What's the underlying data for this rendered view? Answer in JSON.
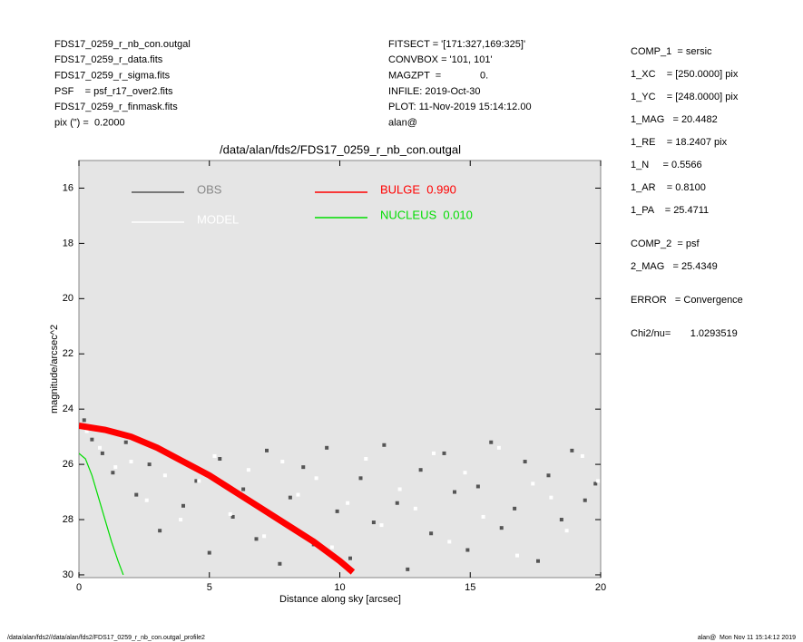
{
  "header": {
    "left": [
      "FDS17_0259_r_nb_con.outgal",
      "FDS17_0259_r_data.fits",
      "FDS17_0259_r_sigma.fits",
      "PSF    = psf_r17_over2.fits",
      "FDS17_0259_r_finmask.fits",
      "pix (\") =  0.2000"
    ],
    "center": [
      "FITSECT = '[171:327,169:325]'",
      "CONVBOX = '101, 101'",
      "MAGZPT  =              0.",
      "INFILE: 2019-Oct-30",
      "PLOT: 11-Nov-2019 15:14:12.00",
      "alan@"
    ],
    "right": [
      "COMP_1  = sersic",
      "1_XC    = [250.0000] pix",
      "1_YC    = [248.0000] pix",
      "1_MAG   = 20.4482",
      "1_RE    = 18.2407 pix",
      "1_N     = 0.5566",
      "1_AR    = 0.8100",
      "1_PA    = 25.4711",
      "COMP_2  = psf",
      "2_MAG   = 25.4349",
      "ERROR   = Convergence",
      "Chi2/nu=       1.0293519"
    ]
  },
  "footer": {
    "left": "/data/alan/fds2//data/alan/fds2/FDS17_0259_r_nb_con.outgal_profile2",
    "right": "alan@  Mon Nov 11 15:14:12 2019"
  },
  "chart_data": {
    "type": "scatter",
    "title": "/data/alan/fds2/FDS17_0259_r_nb_con.outgal",
    "xlabel": "Distance along sky [arcsec]",
    "ylabel": "magnitude/arcsec^2",
    "xlim": [
      0,
      20
    ],
    "xticks": [
      0,
      5,
      10,
      15,
      20
    ],
    "ylim": [
      30.1,
      15
    ],
    "yticks": [
      16,
      18,
      20,
      22,
      24,
      26,
      28,
      30
    ],
    "background": "#e5e5e5",
    "series": [
      {
        "name": "OBS",
        "color": "#555555",
        "type": "scatter",
        "x": [
          0.2,
          0.5,
          0.9,
          1.3,
          1.8,
          2.2,
          2.7,
          3.1,
          3.6,
          4.0,
          4.5,
          5.0,
          5.4,
          5.9,
          6.3,
          6.8,
          7.2,
          7.7,
          8.1,
          8.6,
          9.0,
          9.5,
          9.9,
          10.4,
          10.8,
          11.3,
          11.7,
          12.2,
          12.6,
          13.1,
          13.5,
          14.0,
          14.4,
          14.9,
          15.3,
          15.8,
          16.2,
          16.7,
          17.1,
          17.6,
          18.0,
          18.5,
          18.9,
          19.4,
          19.8
        ],
        "values": [
          24.4,
          25.1,
          25.6,
          26.3,
          25.2,
          27.1,
          26.0,
          28.4,
          25.7,
          27.5,
          26.6,
          29.2,
          25.8,
          27.9,
          26.9,
          28.7,
          25.5,
          29.6,
          27.2,
          26.1,
          28.9,
          25.4,
          27.7,
          29.4,
          26.5,
          28.1,
          25.3,
          27.4,
          29.8,
          26.2,
          28.5,
          25.6,
          27.0,
          29.1,
          26.8,
          25.2,
          28.3,
          27.6,
          25.9,
          29.5,
          26.4,
          28.0,
          25.5,
          27.3,
          26.7
        ]
      },
      {
        "name": "MODEL",
        "color": "#ffffff",
        "type": "scatter",
        "x": [
          0.3,
          0.8,
          1.4,
          2.0,
          2.6,
          3.3,
          3.9,
          4.6,
          5.2,
          5.8,
          6.5,
          7.1,
          7.8,
          8.4,
          9.1,
          9.7,
          10.3,
          11.0,
          11.6,
          12.3,
          12.9,
          13.6,
          14.2,
          14.8,
          15.5,
          16.1,
          16.8,
          17.4,
          18.1,
          18.7,
          19.3,
          19.9
        ],
        "values": [
          24.8,
          25.4,
          26.1,
          25.9,
          27.3,
          26.4,
          28.0,
          26.6,
          25.7,
          27.8,
          26.2,
          28.6,
          25.9,
          27.1,
          26.5,
          29.0,
          27.4,
          25.8,
          28.2,
          26.9,
          27.6,
          25.6,
          28.8,
          26.3,
          27.9,
          25.4,
          29.3,
          26.7,
          27.2,
          28.4,
          25.7,
          26.6
        ]
      },
      {
        "name": "BULGE  0.990",
        "color": "#ff0000",
        "type": "line",
        "x": [
          0,
          1,
          2,
          3,
          4,
          5,
          6,
          7,
          8,
          9,
          10,
          10.5
        ],
        "values": [
          24.6,
          24.75,
          25.0,
          25.4,
          25.9,
          26.4,
          27.0,
          27.6,
          28.2,
          28.8,
          29.5,
          29.9
        ]
      },
      {
        "name": "NUCLEUS  0.010",
        "color": "#00dd00",
        "type": "line",
        "x": [
          0,
          0.25,
          0.5,
          0.75,
          1,
          1.25,
          1.5,
          1.7
        ],
        "values": [
          25.6,
          25.8,
          26.4,
          27.2,
          28.0,
          28.8,
          29.5,
          30.0
        ]
      }
    ]
  }
}
